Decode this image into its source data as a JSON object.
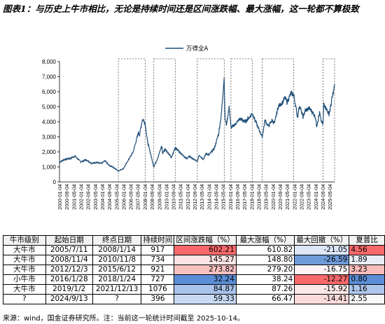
{
  "title": "图表1：与历史上牛市相比，无论是持续时间还是区间涨跌幅、最大涨幅，这一轮都不算极致",
  "chart_data": {
    "type": "line",
    "series": [
      {
        "name": "万得全A",
        "color": "#1f4e79",
        "points": [
          [
            "2000-01-04",
            1310
          ],
          [
            "2000-06-01",
            1480
          ],
          [
            "2001-01-01",
            1560
          ],
          [
            "2001-06-14",
            1720
          ],
          [
            "2002-01-01",
            1340
          ],
          [
            "2002-06-25",
            1470
          ],
          [
            "2003-01-01",
            1240
          ],
          [
            "2003-06-01",
            1300
          ],
          [
            "2004-01-01",
            1250
          ],
          [
            "2004-04-07",
            1410
          ],
          [
            "2004-09-01",
            1090
          ],
          [
            "2005-01-01",
            1000
          ],
          [
            "2005-07-11",
            720
          ],
          [
            "2005-10-01",
            800
          ],
          [
            "2006-01-01",
            900
          ],
          [
            "2006-06-01",
            1400
          ],
          [
            "2006-12-01",
            2000
          ],
          [
            "2007-05-29",
            3300
          ],
          [
            "2007-07-01",
            3100
          ],
          [
            "2007-10-16",
            4200
          ],
          [
            "2008-01-14",
            3900
          ],
          [
            "2008-04-01",
            2700
          ],
          [
            "2008-07-01",
            2000
          ],
          [
            "2008-11-04",
            1000
          ],
          [
            "2009-03-01",
            1500
          ],
          [
            "2009-08-04",
            2400
          ],
          [
            "2009-09-01",
            1900
          ],
          [
            "2009-12-01",
            2200
          ],
          [
            "2010-07-01",
            1600
          ],
          [
            "2010-11-08",
            2300
          ],
          [
            "2011-04-01",
            2000
          ],
          [
            "2011-12-01",
            1550
          ],
          [
            "2012-03-01",
            1700
          ],
          [
            "2012-12-03",
            1350
          ],
          [
            "2013-02-01",
            1800
          ],
          [
            "2013-06-25",
            1500
          ],
          [
            "2013-10-01",
            1900
          ],
          [
            "2014-01-01",
            1800
          ],
          [
            "2014-07-01",
            2200
          ],
          [
            "2014-12-01",
            3200
          ],
          [
            "2015-03-01",
            4400
          ],
          [
            "2015-06-12",
            7000
          ],
          [
            "2015-07-08",
            4200
          ],
          [
            "2015-08-26",
            3800
          ],
          [
            "2015-12-01",
            5000
          ],
          [
            "2016-01-28",
            3600
          ],
          [
            "2016-06-01",
            3800
          ],
          [
            "2016-12-01",
            4200
          ],
          [
            "2017-06-01",
            4000
          ],
          [
            "2017-12-01",
            4400
          ],
          [
            "2018-01-24",
            4600
          ],
          [
            "2018-07-01",
            3800
          ],
          [
            "2019-01-02",
            3000
          ],
          [
            "2019-04-08",
            4100
          ],
          [
            "2019-08-01",
            3700
          ],
          [
            "2019-12-01",
            4100
          ],
          [
            "2020-03-01",
            3900
          ],
          [
            "2020-07-01",
            5000
          ],
          [
            "2020-12-01",
            5300
          ],
          [
            "2021-02-18",
            5600
          ],
          [
            "2021-05-01",
            5300
          ],
          [
            "2021-09-14",
            5900
          ],
          [
            "2021-12-13",
            5800
          ],
          [
            "2022-04-26",
            4300
          ],
          [
            "2022-07-01",
            5100
          ],
          [
            "2022-10-31",
            4300
          ],
          [
            "2023-01-01",
            4700
          ],
          [
            "2023-06-01",
            4900
          ],
          [
            "2023-10-01",
            4600
          ],
          [
            "2024-01-01",
            4300
          ],
          [
            "2024-02-05",
            3700
          ],
          [
            "2024-05-20",
            4600
          ],
          [
            "2024-07-01",
            4100
          ],
          [
            "2024-09-13",
            3800
          ],
          [
            "2024-10-08",
            5200
          ],
          [
            "2024-12-01",
            5000
          ],
          [
            "2025-04-07",
            4500
          ],
          [
            "2025-06-01",
            5000
          ],
          [
            "2025-08-01",
            5700
          ],
          [
            "2025-10-14",
            6400
          ]
        ]
      }
    ],
    "ylim": [
      0,
      8000
    ],
    "yticks": [
      "0",
      "1,000",
      "2,000",
      "3,000",
      "4,000",
      "5,000",
      "6,000",
      "7,000",
      "8,000"
    ],
    "xticks": [
      "2000-01-04",
      "2000-09-04",
      "2001-05-04",
      "2002-01-04",
      "2002-09-04",
      "2003-05-04",
      "2004-01-04",
      "2004-09-04",
      "2005-05-04",
      "2006-01-04",
      "2006-09-04",
      "2007-05-04",
      "2008-01-04",
      "2008-09-04",
      "2009-05-04",
      "2010-01-04",
      "2010-09-04",
      "2011-05-04",
      "2012-01-04",
      "2012-09-04",
      "2013-05-04",
      "2014-01-04",
      "2014-09-04",
      "2015-05-04",
      "2016-01-04",
      "2016-09-04",
      "2017-05-04",
      "2018-01-04",
      "2018-09-04",
      "2019-05-04",
      "2020-01-04",
      "2020-09-04",
      "2021-05-04",
      "2022-01-04",
      "2022-09-04",
      "2023-05-04",
      "2024-01-04",
      "2024-09-04",
      "2025-05-04"
    ],
    "bull_periods": [
      [
        "2005-07-11",
        "2008-01-14"
      ],
      [
        "2008-11-04",
        "2010-11-08"
      ],
      [
        "2012-12-03",
        "2015-06-12"
      ],
      [
        "2016-01-28",
        "2018-01-24"
      ],
      [
        "2019-01-02",
        "2021-12-13"
      ],
      [
        "2024-09-13",
        "2025-10-14"
      ]
    ],
    "legend_position": "top-center",
    "grid": false
  },
  "table": {
    "headers": [
      "牛市级别",
      "起始日期",
      "终点日期",
      "持续时间",
      "区间涨跌幅（%）",
      "最大涨幅（%）",
      "最大回撤（%）",
      "夏普比"
    ],
    "rows": [
      [
        "大牛市",
        "2005/7/11",
        "2008/1/14",
        "917",
        "602.21",
        "610.82",
        "-21.05",
        "4.56"
      ],
      [
        "大牛市",
        "2008/11/4",
        "2010/11/8",
        "734",
        "145.27",
        "148.80",
        "-26.59",
        "1.89"
      ],
      [
        "大牛市",
        "2012/12/3",
        "2015/6/12",
        "921",
        "273.82",
        "279.20",
        "-16.75",
        "3.23"
      ],
      [
        "小牛市",
        "2016/1/28",
        "2018/1/24",
        "727",
        "32.24",
        "38.24",
        "-12.27",
        "0.80"
      ],
      [
        "大牛市",
        "2019/1/2",
        "2021/12/13",
        "1076",
        "84.87",
        "87.26",
        "-15.92",
        "1.16"
      ],
      [
        "?",
        "2024/9/13",
        "?",
        "396",
        "59.33",
        "66.47",
        "-14.41",
        "2.55"
      ]
    ],
    "cell_colors": {
      "range": [
        "#f8696b",
        "#fce4e4",
        "#f9c2c2",
        "#5b8ed6",
        "#a9c3ec",
        "#c8d9f3"
      ],
      "drawdown": [
        "#dce6f7",
        "#6f9ad8",
        "#fdf5f5",
        "#f8696b",
        "#fce8e8",
        "#fbdada"
      ],
      "sharpe": [
        "#f8696b",
        "#e8eef8",
        "#f9bcbc",
        "#5b8ed6",
        "#aec6ec",
        "#f8f8f8"
      ]
    }
  },
  "note": "来源：wind，国金证券研究所。注：当前这一轮统计时间截至 2025-10-14。"
}
